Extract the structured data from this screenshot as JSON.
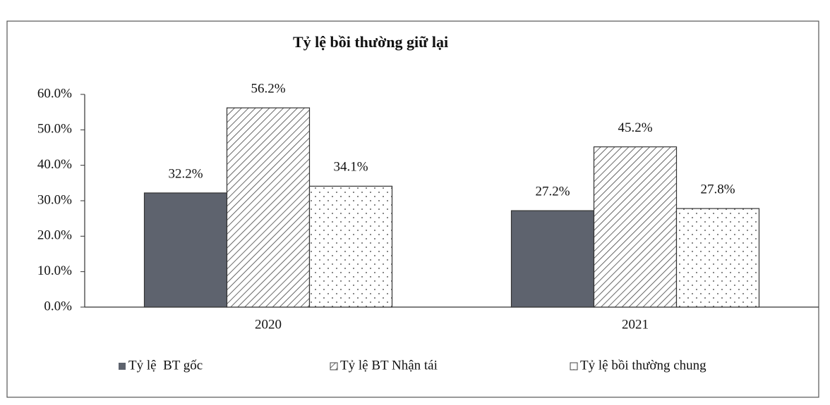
{
  "chart_data": {
    "type": "bar",
    "title": "Tỷ lệ bồi thường giữ lại",
    "categories": [
      "2020",
      "2021"
    ],
    "series": [
      {
        "name": "Tỷ lệ  BT gốc",
        "color": "#5e636e",
        "fill_style": "solid",
        "values": [
          32.2,
          27.2
        ],
        "value_labels": [
          "32.2%",
          "27.2%"
        ]
      },
      {
        "name": "Tỷ lệ BT Nhận tái",
        "color": "#444444",
        "fill_style": "hatch",
        "values": [
          56.2,
          45.2
        ],
        "value_labels": [
          "56.2%",
          "45.2%"
        ]
      },
      {
        "name": "Tỷ lệ bồi thường chung",
        "color": "#444444",
        "fill_style": "dots",
        "values": [
          34.1,
          27.8
        ],
        "value_labels": [
          "34.1%",
          "27.8%"
        ]
      }
    ],
    "ylim": [
      0,
      60
    ],
    "yticks": [
      {
        "value": 0,
        "label": "0.0%"
      },
      {
        "value": 10,
        "label": "10.0%"
      },
      {
        "value": 20,
        "label": "20.0%"
      },
      {
        "value": 30,
        "label": "30.0%"
      },
      {
        "value": 40,
        "label": "40.0%"
      },
      {
        "value": 50,
        "label": "50.0%"
      },
      {
        "value": 60,
        "label": "60.0%"
      }
    ],
    "grid": false,
    "legend": "bottom"
  }
}
